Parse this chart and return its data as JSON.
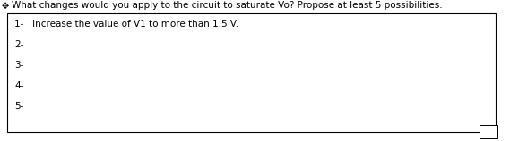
{
  "title": "What changes would you apply to the circuit to saturate Vo? Propose at least 5 possibilities.",
  "title_fontsize": 7.5,
  "title_color": "#000000",
  "background_color": "#ffffff",
  "box_color": "#ffffff",
  "box_edge_color": "#000000",
  "line1": "1-   Increase the value of V1 to more than 1.5 V.",
  "line2": "2-",
  "line3": "3-",
  "line4": "4-",
  "line5": "5-",
  "text_fontsize": 7.5,
  "text_color": "#000000",
  "small_box_color": "#ffffff",
  "small_box_edge_color": "#000000",
  "fig_width": 5.69,
  "fig_height": 1.58,
  "dpi": 100
}
